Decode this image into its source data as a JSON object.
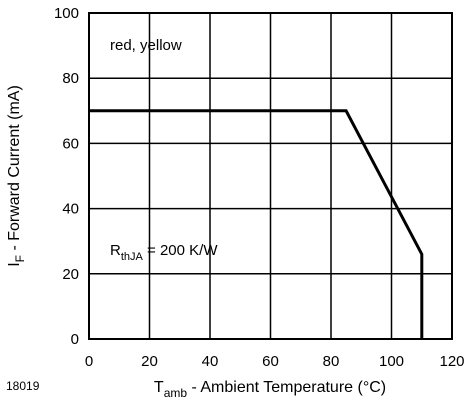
{
  "chart_data": {
    "type": "line",
    "title": "",
    "figure_id": "18019",
    "x_axis": {
      "label_main": "T",
      "label_sub": "amb",
      "label_rest": " - Ambient Temperature (°C)",
      "range": [
        0,
        120
      ],
      "ticks": [
        0,
        20,
        40,
        60,
        80,
        100,
        120
      ],
      "tick_labels": [
        "0",
        "20",
        "40",
        "60",
        "80",
        "100",
        "120"
      ]
    },
    "y_axis": {
      "label_main": "I",
      "label_sub": "F",
      "label_rest": " - Forward Current (mA)",
      "range": [
        0,
        100
      ],
      "ticks": [
        0,
        20,
        40,
        60,
        80,
        100
      ],
      "tick_labels": [
        "0",
        "20",
        "40",
        "60",
        "80",
        "100"
      ]
    },
    "grid": true,
    "series": [
      {
        "x": [
          0,
          85,
          110,
          110
        ],
        "y": [
          70,
          70,
          26,
          0
        ]
      }
    ],
    "annotations": {
      "color_note": "red, yellow",
      "rth_main": "R",
      "rth_sub": "thJA",
      "rth_rest": " = 200 K/W"
    }
  }
}
